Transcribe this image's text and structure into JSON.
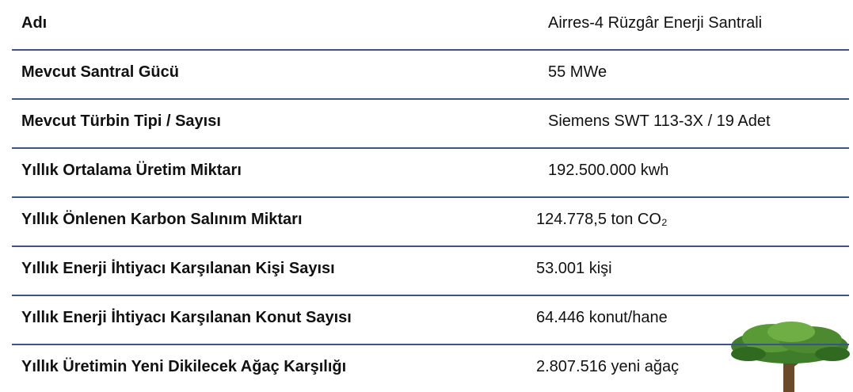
{
  "table": {
    "rows": [
      [
        "Adı",
        "Airres-4 Rüzgâr Enerji Santrali"
      ],
      [
        "Mevcut Santral Gücü",
        "55 MWe"
      ],
      [
        "Mevcut Türbin Tipi / Sayısı",
        "Siemens SWT 113-3X / 19 Adet"
      ],
      [
        "Yıllık Ortalama Üretim Miktarı",
        "192.500.000 kwh"
      ],
      [
        "Yıllık Önlenen Karbon Salınım Miktarı",
        "124.778,5 ton CO₂"
      ],
      [
        "Yıllık Enerji İhtiyacı Karşılanan Kişi Sayısı",
        "53.001 kişi"
      ],
      [
        "Yıllık Enerji İhtiyacı Karşılanan Konut Sayısı",
        "64.446 konut/hane"
      ],
      [
        "Yıllık Üretimin Yeni Dikilecek Ağaç Karşılığı",
        "2.807.516 yeni ağaç"
      ]
    ]
  }
}
